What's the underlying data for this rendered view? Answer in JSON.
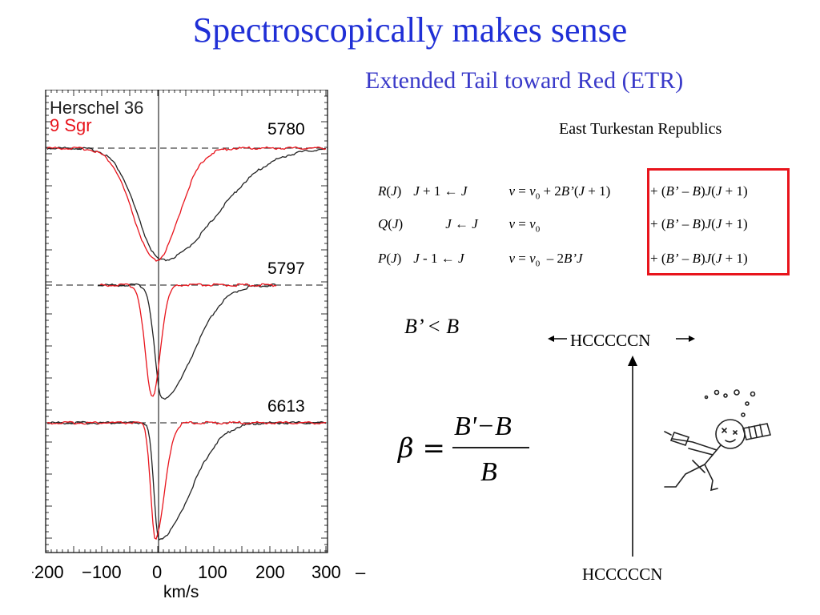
{
  "slide": {
    "title": "Spectroscopically makes sense",
    "subtitle": "Extended Tail toward Red (ETR)",
    "etr_expansion": "East Turkestan Republics"
  },
  "branches": [
    {
      "lhs": "R(J)",
      "transition": "J + 1 ← J",
      "v_expr": "v = v0 + 2B’(J + 1)",
      "term": "+ (B’ – B)J(J + 1)"
    },
    {
      "lhs": "Q(J)",
      "transition": "J ← J",
      "v_expr": "v = v0",
      "term": "+ (B’ – B)J(J + 1)"
    },
    {
      "lhs": "P(J)",
      "transition": "J - 1 ← J",
      "v_expr": "v = v0 – 2B’J",
      "term": "+ (B’ – B)J(J + 1)"
    }
  ],
  "inequality": "B’ < B",
  "beta_equation": {
    "lhs": "β =",
    "numerator": "B'−B",
    "denominator": "B"
  },
  "molecule_labels": {
    "top": "HCCCCCN",
    "bottom": "HCCCCCN"
  },
  "figure": {
    "legend": [
      {
        "name": "Herschel 36",
        "color": "#222222"
      },
      {
        "name": "9 Sgr",
        "color": "#e8141c"
      }
    ],
    "panels": [
      "5780",
      "5797",
      "6613"
    ],
    "x_ticks": [
      "−200",
      "−100",
      "0",
      "100",
      "200",
      "300"
    ],
    "x_label": "km/s"
  },
  "colors": {
    "title": "#1f2fd6",
    "subtitle": "#3a3ac9",
    "highlight": "#e8141c"
  }
}
